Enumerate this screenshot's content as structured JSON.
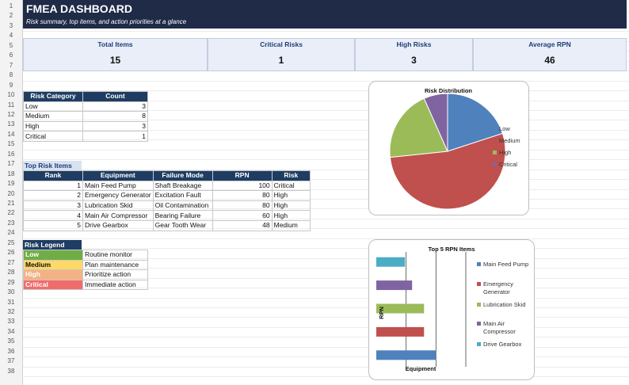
{
  "header": {
    "title": "FMEA DASHBOARD",
    "subtitle": "Risk summary, top items, and action priorities at a glance"
  },
  "row_numbers": [
    "1",
    "2",
    "3",
    "4",
    "5",
    "6",
    "7",
    "8",
    "9",
    "10",
    "11",
    "12",
    "13",
    "14",
    "15",
    "16",
    "17",
    "18",
    "19",
    "20",
    "21",
    "22",
    "23",
    "24",
    "25",
    "26",
    "27",
    "28",
    "29",
    "30",
    "31",
    "32",
    "33",
    "34",
    "35",
    "36",
    "37",
    "38"
  ],
  "kpis": [
    {
      "label": "Total Items",
      "value": "15"
    },
    {
      "label": "Critical Risks",
      "value": "1"
    },
    {
      "label": "High Risks",
      "value": "3"
    },
    {
      "label": "Average RPN",
      "value": "46"
    }
  ],
  "risk_category_table": {
    "headers": [
      "Risk Category",
      "Count"
    ],
    "rows": [
      [
        "Low",
        "3"
      ],
      [
        "Medium",
        "8"
      ],
      [
        "High",
        "3"
      ],
      [
        "Critical",
        "1"
      ]
    ]
  },
  "top_risk": {
    "section_label": "Top Risk Items",
    "headers": [
      "Rank",
      "Equipment",
      "Failure Mode",
      "RPN",
      "Risk"
    ],
    "rows": [
      [
        "1",
        "Main Feed Pump",
        "Shaft Breakage",
        "100",
        "Critical"
      ],
      [
        "2",
        "Emergency Generator",
        "Excitation Fault",
        "80",
        "High"
      ],
      [
        "3",
        "Lubrication Skid",
        "Oil Contamination",
        "80",
        "High"
      ],
      [
        "4",
        "Main Air Compressor",
        "Bearing Failure",
        "60",
        "High"
      ],
      [
        "5",
        "Drive Gearbox",
        "Gear Tooth Wear",
        "48",
        "Medium"
      ]
    ]
  },
  "risk_legend": {
    "section_label": "Risk Legend",
    "rows": [
      {
        "level": "Low",
        "action": "Routine monitor",
        "color": "#70ad47"
      },
      {
        "level": "Medium",
        "action": "Plan maintenance",
        "color": "#ffd966"
      },
      {
        "level": "High",
        "action": "Prioritize action",
        "color": "#f4b183"
      },
      {
        "level": "Critical",
        "action": "Immediate action",
        "color": "#f26b6b"
      }
    ]
  },
  "chart_data": [
    {
      "type": "pie",
      "title": "Risk Distribution",
      "categories": [
        "Low",
        "Medium",
        "High",
        "Critical"
      ],
      "values": [
        3,
        8,
        3,
        1
      ],
      "colors": [
        "#4f81bd",
        "#c0504d",
        "#9bbb59",
        "#8064a2"
      ],
      "legend_position": "right"
    },
    {
      "type": "bar",
      "orientation": "horizontal",
      "title": "Top 5 RPN Items",
      "xlabel": "Equipment",
      "ylabel": "RPN",
      "series": [
        {
          "name": "Main Feed Pump",
          "values": [
            100
          ]
        },
        {
          "name": "Emergency Generator",
          "values": [
            80
          ]
        },
        {
          "name": "Lubrication Skid",
          "values": [
            80
          ]
        },
        {
          "name": "Main Air Compressor",
          "values": [
            60
          ]
        },
        {
          "name": "Drive Gearbox",
          "values": [
            48
          ]
        }
      ],
      "colors": [
        "#4f81bd",
        "#c0504d",
        "#9bbb59",
        "#8064a2",
        "#4bacc6"
      ],
      "xlim": [
        0,
        150
      ],
      "legend_position": "right"
    }
  ]
}
